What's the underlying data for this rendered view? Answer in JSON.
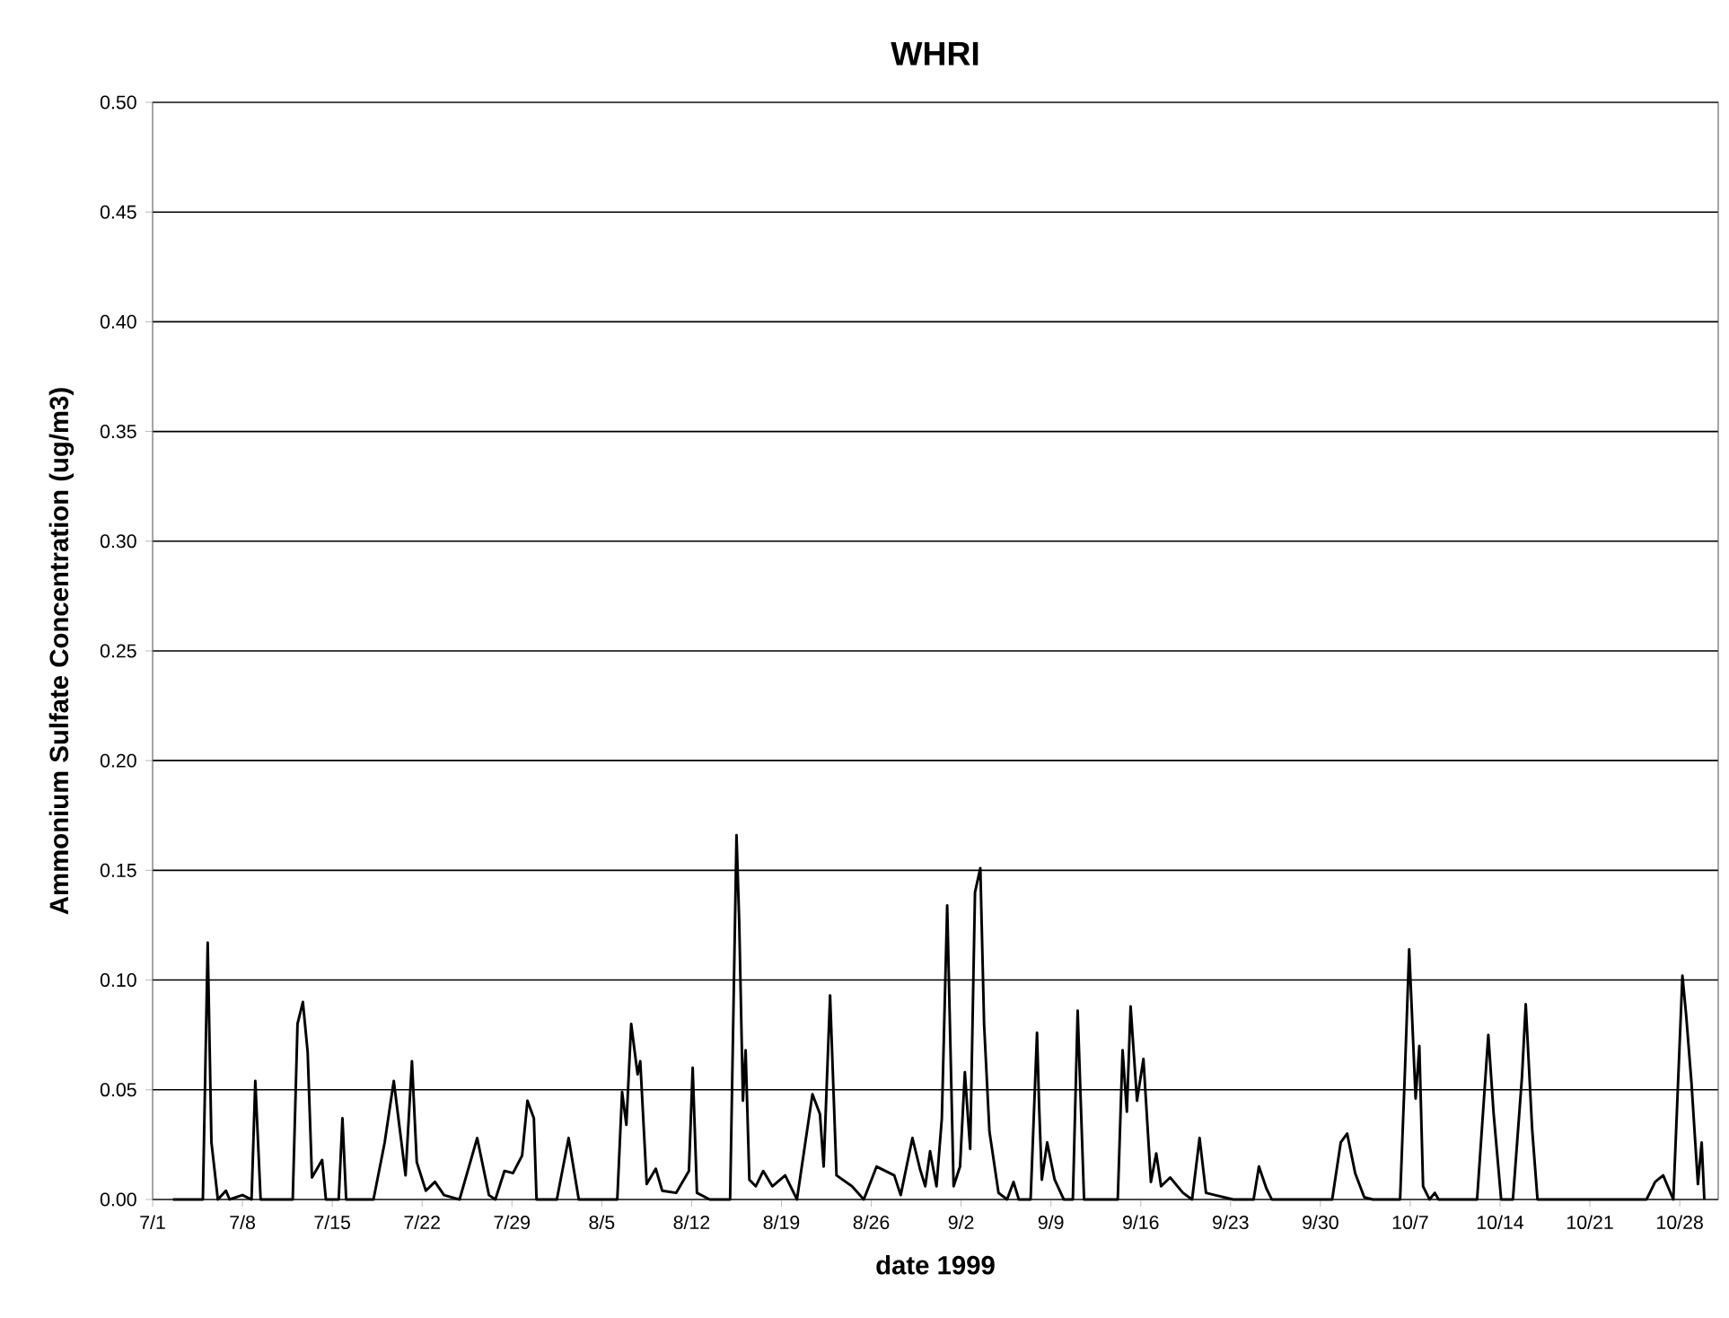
{
  "chart_data": {
    "type": "line",
    "title": "WHRI",
    "xlabel": "date 1999",
    "ylabel": "Ammonium Sulfate Concentration (ug/m3)",
    "xlim": [
      "1999-07-01",
      "1999-10-31"
    ],
    "xticks": [
      {
        "value": "1999-07-01",
        "label": "7/1"
      },
      {
        "value": "1999-07-08",
        "label": "7/8"
      },
      {
        "value": "1999-07-15",
        "label": "7/15"
      },
      {
        "value": "1999-07-22",
        "label": "7/22"
      },
      {
        "value": "1999-07-29",
        "label": "7/29"
      },
      {
        "value": "1999-08-05",
        "label": "8/5"
      },
      {
        "value": "1999-08-12",
        "label": "8/12"
      },
      {
        "value": "1999-08-19",
        "label": "8/19"
      },
      {
        "value": "1999-08-26",
        "label": "8/26"
      },
      {
        "value": "1999-09-02",
        "label": "9/2"
      },
      {
        "value": "1999-09-09",
        "label": "9/9"
      },
      {
        "value": "1999-09-16",
        "label": "9/16"
      },
      {
        "value": "1999-09-23",
        "label": "9/23"
      },
      {
        "value": "1999-09-30",
        "label": "9/30"
      },
      {
        "value": "1999-10-07",
        "label": "10/7"
      },
      {
        "value": "1999-10-14",
        "label": "10/14"
      },
      {
        "value": "1999-10-21",
        "label": "10/21"
      },
      {
        "value": "1999-10-28",
        "label": "10/28"
      }
    ],
    "ylim": [
      0,
      0.5
    ],
    "yticks": [
      {
        "value": 0,
        "label": "0.00"
      },
      {
        "value": 0.05,
        "label": "0.05"
      },
      {
        "value": 0.1,
        "label": "0.10"
      },
      {
        "value": 0.15,
        "label": "0.15"
      },
      {
        "value": 0.2,
        "label": "0.20"
      },
      {
        "value": 0.25,
        "label": "0.25"
      },
      {
        "value": 0.3,
        "label": "0.30"
      },
      {
        "value": 0.35,
        "label": "0.35"
      },
      {
        "value": 0.4,
        "label": "0.40"
      },
      {
        "value": 0.45,
        "label": "0.45"
      },
      {
        "value": 0.5,
        "label": "0.50"
      }
    ],
    "grid": "y",
    "marker": "none",
    "line_style": "solid",
    "series": [
      {
        "color": "#000000",
        "x": [
          "1999-07-02T14:00",
          "1999-07-04T05:00",
          "1999-07-04T22:00",
          "1999-07-05T07:00",
          "1999-07-05T14:00",
          "1999-07-06T02:00",
          "1999-07-06T17:00",
          "1999-07-07T00:00",
          "1999-07-08T00:00",
          "1999-07-08T17:00",
          "1999-07-09T00:00",
          "1999-07-09T10:00",
          "1999-07-11T22:00",
          "1999-07-12T07:00",
          "1999-07-12T17:00",
          "1999-07-13T02:00",
          "1999-07-13T10:00",
          "1999-07-14T05:00",
          "1999-07-14T12:00",
          "1999-07-15T12:00",
          "1999-07-15T19:00",
          "1999-07-16T02:00",
          "1999-07-18T05:00",
          "1999-07-19T02:00",
          "1999-07-19T19:00",
          "1999-07-20T17:00",
          "1999-07-21T05:00",
          "1999-07-21T14:00",
          "1999-07-22T07:00",
          "1999-07-23T00:00",
          "1999-07-23T17:00",
          "1999-07-24T22:00",
          "1999-07-26T07:00",
          "1999-07-27T05:00",
          "1999-07-27T17:00",
          "1999-07-28T10:00",
          "1999-07-29T02:00",
          "1999-07-29T19:00",
          "1999-07-30T05:00",
          "1999-07-30T17:00",
          "1999-07-30T22:00",
          "1999-08-01T12:00",
          "1999-08-02T10:00",
          "1999-08-03T05:00",
          "1999-08-06T05:00",
          "1999-08-06T14:00",
          "1999-08-06T22:00",
          "1999-08-07T07:00",
          "1999-08-07T19:00",
          "1999-08-08T00:00",
          "1999-08-08T12:00",
          "1999-08-09T05:00",
          "1999-08-09T17:00",
          "1999-08-10T19:00",
          "1999-08-11T19:00",
          "1999-08-12T02:00",
          "1999-08-12T10:00",
          "1999-08-13T10:00",
          "1999-08-15T00:00",
          "1999-08-15T12:00",
          "1999-08-15T17:00",
          "1999-08-16T00:00",
          "1999-08-16T05:00",
          "1999-08-16T12:00",
          "1999-08-17T00:00",
          "1999-08-17T14:00",
          "1999-08-18T07:00",
          "1999-08-19T07:00",
          "1999-08-20T05:00",
          "1999-08-21T10:00",
          "1999-08-22T00:00",
          "1999-08-22T07:00",
          "1999-08-22T19:00",
          "1999-08-23T07:00",
          "1999-08-24T12:00",
          "1999-08-25T10:00",
          "1999-08-26T10:00",
          "1999-08-27T19:00",
          "1999-08-28T07:00",
          "1999-08-29T05:00",
          "1999-08-29T19:00",
          "1999-08-30T05:00",
          "1999-08-30T14:00",
          "1999-08-31T02:00",
          "1999-08-31T12:00",
          "1999-08-31T22:00",
          "1999-09-01T10:00",
          "1999-09-01T22:00",
          "1999-09-02T07:00",
          "1999-09-02T17:00",
          "1999-09-03T02:00",
          "1999-09-03T12:00",
          "1999-09-03T19:00",
          "1999-09-04T05:00",
          "1999-09-04T22:00",
          "1999-09-05T14:00",
          "1999-09-06T02:00",
          "1999-09-06T12:00",
          "1999-09-07T10:00",
          "1999-09-07T22:00",
          "1999-09-08T02:00",
          "1999-09-08T07:00",
          "1999-09-08T17:00",
          "1999-09-09T07:00",
          "1999-09-10T00:00",
          "1999-09-10T17:00",
          "1999-09-11T02:00",
          "1999-09-11T14:00",
          "1999-09-14T05:00",
          "1999-09-14T14:00",
          "1999-09-14T22:00",
          "1999-09-15T05:00",
          "1999-09-15T17:00",
          "1999-09-16T05:00",
          "1999-09-16T19:00",
          "1999-09-17T05:00",
          "1999-09-17T14:00",
          "1999-09-18T07:00",
          "1999-09-19T07:00",
          "1999-09-20T00:00",
          "1999-09-20T14:00",
          "1999-09-21T02:00",
          "1999-09-21T19:00",
          "1999-09-23T05:00",
          "1999-09-24T19:00",
          "1999-09-25T05:00",
          "1999-09-25T19:00",
          "1999-09-26T05:00",
          "1999-09-30T22:00",
          "1999-10-01T14:00",
          "1999-10-02T02:00",
          "1999-10-02T17:00",
          "1999-10-03T10:00",
          "1999-10-04T02:00",
          "1999-10-06T05:00",
          "1999-10-06T14:00",
          "1999-10-06T22:00",
          "1999-10-07T10:00",
          "1999-10-07T17:00",
          "1999-10-08T00:00",
          "1999-10-08T12:00",
          "1999-10-08T22:00",
          "1999-10-09T05:00",
          "1999-10-12T05:00",
          "1999-10-13T02:00",
          "1999-10-13T12:00",
          "1999-10-14T02:00",
          "1999-10-15T00:00",
          "1999-10-15T17:00",
          "1999-10-16T00:00",
          "1999-10-16T12:00",
          "1999-10-16T22:00",
          "1999-10-17T19:00",
          "1999-10-25T10:00",
          "1999-10-26T02:00",
          "1999-10-26T17:00",
          "1999-10-27T12:00",
          "1999-10-28T05:00",
          "1999-10-28T12:00",
          "1999-10-28T22:00",
          "1999-10-29T10:00",
          "1999-10-29T17:00",
          "1999-10-29T22:00"
        ],
        "values": [
          0,
          0,
          0,
          0.117,
          0.026,
          0,
          0.004,
          0,
          0.002,
          0,
          0.054,
          0,
          0,
          0.08,
          0.09,
          0.067,
          0.01,
          0.018,
          0,
          0,
          0.037,
          0,
          0,
          0.026,
          0.054,
          0.011,
          0.063,
          0.017,
          0.004,
          0.008,
          0.002,
          0,
          0.028,
          0.002,
          0,
          0.013,
          0.012,
          0.02,
          0.045,
          0.037,
          0,
          0,
          0.028,
          0,
          0,
          0.049,
          0.034,
          0.08,
          0.057,
          0.063,
          0.007,
          0.014,
          0.004,
          0.003,
          0.013,
          0.06,
          0.003,
          0,
          0,
          0.166,
          0.127,
          0.045,
          0.068,
          0.009,
          0.006,
          0.013,
          0.006,
          0.011,
          0,
          0.048,
          0.039,
          0.015,
          0.093,
          0.011,
          0.006,
          0,
          0.015,
          0.011,
          0.002,
          0.028,
          0.014,
          0.006,
          0.022,
          0.006,
          0.037,
          0.134,
          0.006,
          0.015,
          0.058,
          0.023,
          0.14,
          0.151,
          0.08,
          0.031,
          0.003,
          0,
          0.008,
          0,
          0,
          0.076,
          0.042,
          0.009,
          0.026,
          0.009,
          0,
          0,
          0.086,
          0,
          0,
          0.068,
          0.04,
          0.088,
          0.045,
          0.064,
          0.008,
          0.021,
          0.006,
          0.01,
          0.003,
          0,
          0.028,
          0.003,
          0.002,
          0,
          0,
          0.015,
          0.005,
          0,
          0,
          0.026,
          0.03,
          0.012,
          0.001,
          0,
          0,
          0.058,
          0.114,
          0.046,
          0.07,
          0.006,
          0,
          0.003,
          0,
          0,
          0.075,
          0.039,
          0,
          0,
          0.056,
          0.089,
          0.032,
          0,
          0,
          0,
          0.008,
          0.011,
          0,
          0.102,
          0.084,
          0.053,
          0.007,
          0.026,
          0
        ]
      }
    ]
  }
}
